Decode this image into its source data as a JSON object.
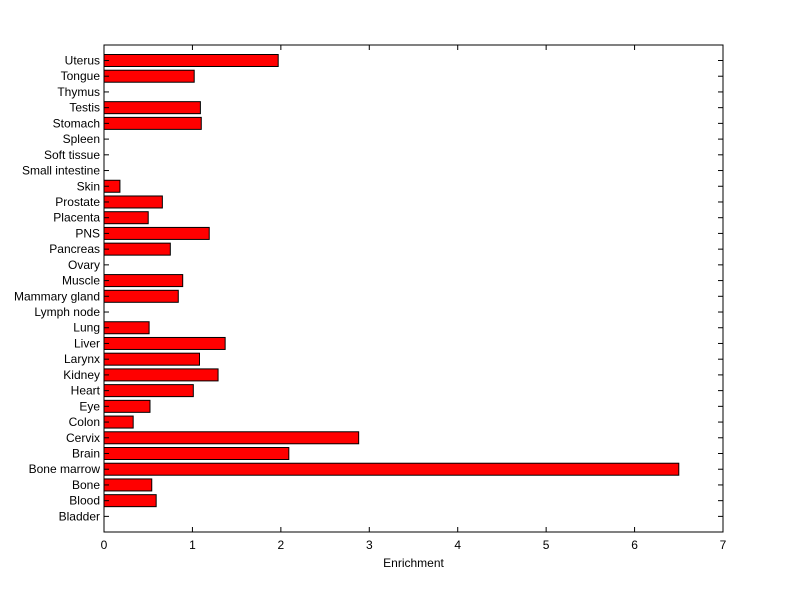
{
  "chart_data": {
    "type": "bar",
    "orientation": "horizontal",
    "xlabel": "Enrichment",
    "ylabel": "",
    "title": "",
    "xlim": [
      0,
      7
    ],
    "xticks": [
      0,
      1,
      2,
      3,
      4,
      5,
      6,
      7
    ],
    "grid": false,
    "bar_color": "#ff0000",
    "bar_edge_color": "#000000",
    "categories": [
      "Bladder",
      "Blood",
      "Bone",
      "Bone marrow",
      "Brain",
      "Cervix",
      "Colon",
      "Eye",
      "Heart",
      "Kidney",
      "Larynx",
      "Liver",
      "Lung",
      "Lymph node",
      "Mammary gland",
      "Muscle",
      "Ovary",
      "Pancreas",
      "PNS",
      "Placenta",
      "Prostate",
      "Skin",
      "Small intestine",
      "Soft tissue",
      "Spleen",
      "Stomach",
      "Testis",
      "Thymus",
      "Tongue",
      "Uterus"
    ],
    "values": [
      0,
      0.59,
      0.54,
      6.5,
      2.09,
      2.88,
      0.33,
      0.52,
      1.01,
      1.29,
      1.08,
      1.37,
      0.51,
      0,
      0.84,
      0.89,
      0,
      0.75,
      1.19,
      0.5,
      0.66,
      0.18,
      0,
      0,
      0,
      1.1,
      1.09,
      0,
      1.02,
      1.97
    ]
  }
}
